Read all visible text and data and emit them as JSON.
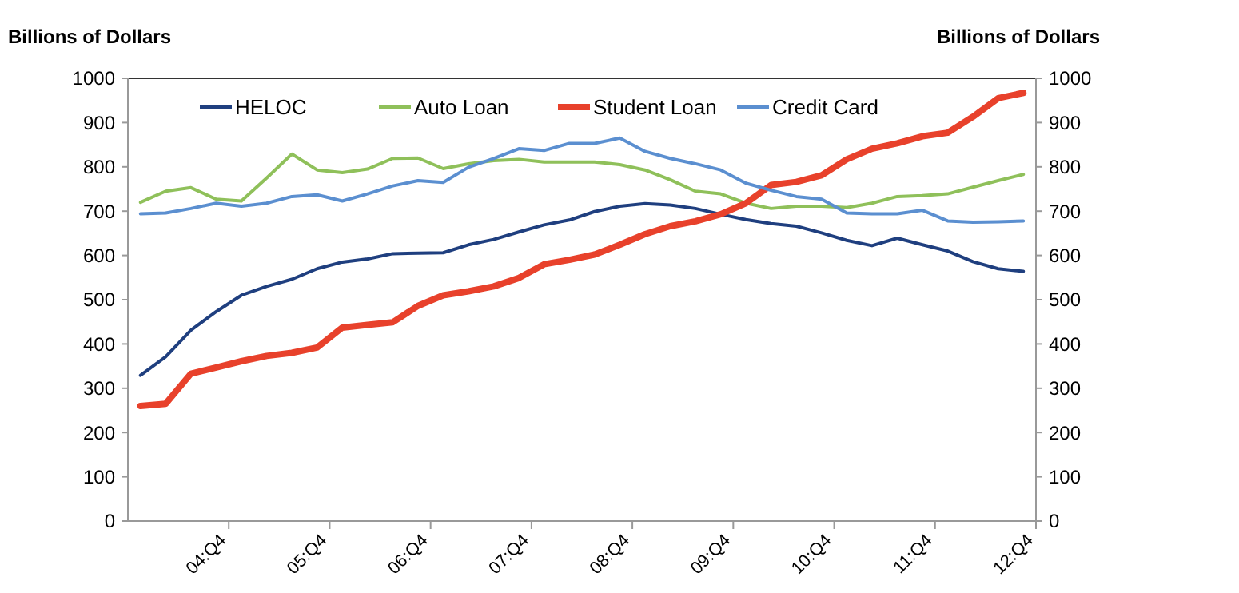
{
  "chart_data": {
    "type": "line",
    "ylabel": "Billions of Dollars",
    "y2label": "Billions of Dollars",
    "categories": [
      null,
      null,
      null,
      "04:Q4",
      null,
      null,
      null,
      "05:Q4",
      null,
      null,
      null,
      "06:Q4",
      null,
      null,
      null,
      "07:Q4",
      null,
      null,
      null,
      "08:Q4",
      null,
      null,
      null,
      "09:Q4",
      null,
      null,
      null,
      "10:Q4",
      null,
      null,
      null,
      "11:Q4",
      null,
      null,
      null,
      "12:Q4"
    ],
    "series": [
      {
        "name": "HELOC",
        "color": "#1f3f7f",
        "values": [
          329,
          371,
          431,
          473,
          510,
          530,
          546,
          570,
          585,
          592,
          604,
          605,
          606,
          624,
          636,
          653,
          669,
          680,
          699,
          711,
          717,
          714,
          706,
          693,
          681,
          672,
          666,
          651,
          634,
          622,
          639,
          624,
          610,
          586,
          570,
          564
        ]
      },
      {
        "name": "Auto Loan",
        "color": "#8fc05a",
        "values": [
          720,
          745,
          753,
          727,
          723,
          775,
          829,
          793,
          787,
          795,
          819,
          820,
          796,
          807,
          814,
          817,
          811,
          811,
          811,
          805,
          793,
          771,
          745,
          739,
          718,
          706,
          711,
          711,
          708,
          718,
          733,
          735,
          739,
          754,
          769,
          783
        ]
      },
      {
        "name": "Student Loan",
        "color": "#e8412b",
        "values": [
          260,
          265,
          333,
          347,
          361,
          373,
          380,
          392,
          437,
          443,
          449,
          486,
          510,
          519,
          530,
          549,
          580,
          590,
          602,
          624,
          648,
          666,
          677,
          693,
          718,
          759,
          766,
          781,
          817,
          841,
          853,
          869,
          877,
          913,
          955,
          967
        ]
      },
      {
        "name": "Credit Card",
        "color": "#5b8fd0",
        "values": [
          694,
          696,
          706,
          718,
          711,
          718,
          733,
          737,
          723,
          739,
          757,
          769,
          765,
          799,
          819,
          841,
          837,
          853,
          853,
          865,
          835,
          819,
          807,
          793,
          763,
          747,
          733,
          727,
          696,
          694,
          694,
          702,
          678,
          675,
          676,
          678
        ]
      }
    ],
    "ylim": [
      0,
      1000
    ],
    "yticks": [
      0,
      100,
      200,
      300,
      400,
      500,
      600,
      700,
      800,
      900,
      1000
    ],
    "y2lim": [
      0,
      1000
    ],
    "y2ticks": [
      0,
      100,
      200,
      300,
      400,
      500,
      600,
      700,
      800,
      900,
      1000
    ],
    "legend": "top",
    "grid": false
  }
}
